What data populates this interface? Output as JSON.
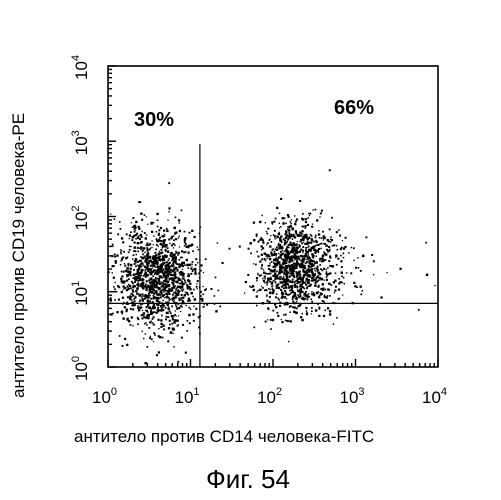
{
  "chart_data": {
    "type": "scatter",
    "xlabel": "антитело против CD14 человека-FITC",
    "ylabel": "антитело против CD19 человека-PE",
    "x_scale": "log",
    "y_scale": "log",
    "xlim": [
      1,
      10000
    ],
    "ylim": [
      1,
      10000
    ],
    "x_ticks": [
      {
        "base": "10",
        "exp": "0",
        "value": 1
      },
      {
        "base": "10",
        "exp": "1",
        "value": 10
      },
      {
        "base": "10",
        "exp": "2",
        "value": 100
      },
      {
        "base": "10",
        "exp": "3",
        "value": 1000
      },
      {
        "base": "10",
        "exp": "4",
        "value": 10000
      }
    ],
    "y_ticks": [
      {
        "base": "10",
        "exp": "0",
        "value": 1
      },
      {
        "base": "10",
        "exp": "1",
        "value": 10
      },
      {
        "base": "10",
        "exp": "2",
        "value": 100
      },
      {
        "base": "10",
        "exp": "3",
        "value": 1000
      },
      {
        "base": "10",
        "exp": "4",
        "value": 10000
      }
    ],
    "gates": {
      "x": 13,
      "y": 7
    },
    "quadrant_labels": [
      {
        "text": "30%",
        "x": 5,
        "y": 2500
      },
      {
        "text": "66%",
        "x": 250,
        "y": 2800
      }
    ],
    "populations": [
      {
        "center_x": 4,
        "center_y": 15,
        "count": 1300
      },
      {
        "center_x": 180,
        "center_y": 22,
        "count": 1150
      },
      {
        "center_x": 600,
        "center_y": 20,
        "count": 80
      }
    ],
    "grid": false,
    "legend": "none"
  },
  "caption": "Фиг. 54",
  "colors": {
    "ink": "#000000",
    "background": "#ffffff"
  }
}
